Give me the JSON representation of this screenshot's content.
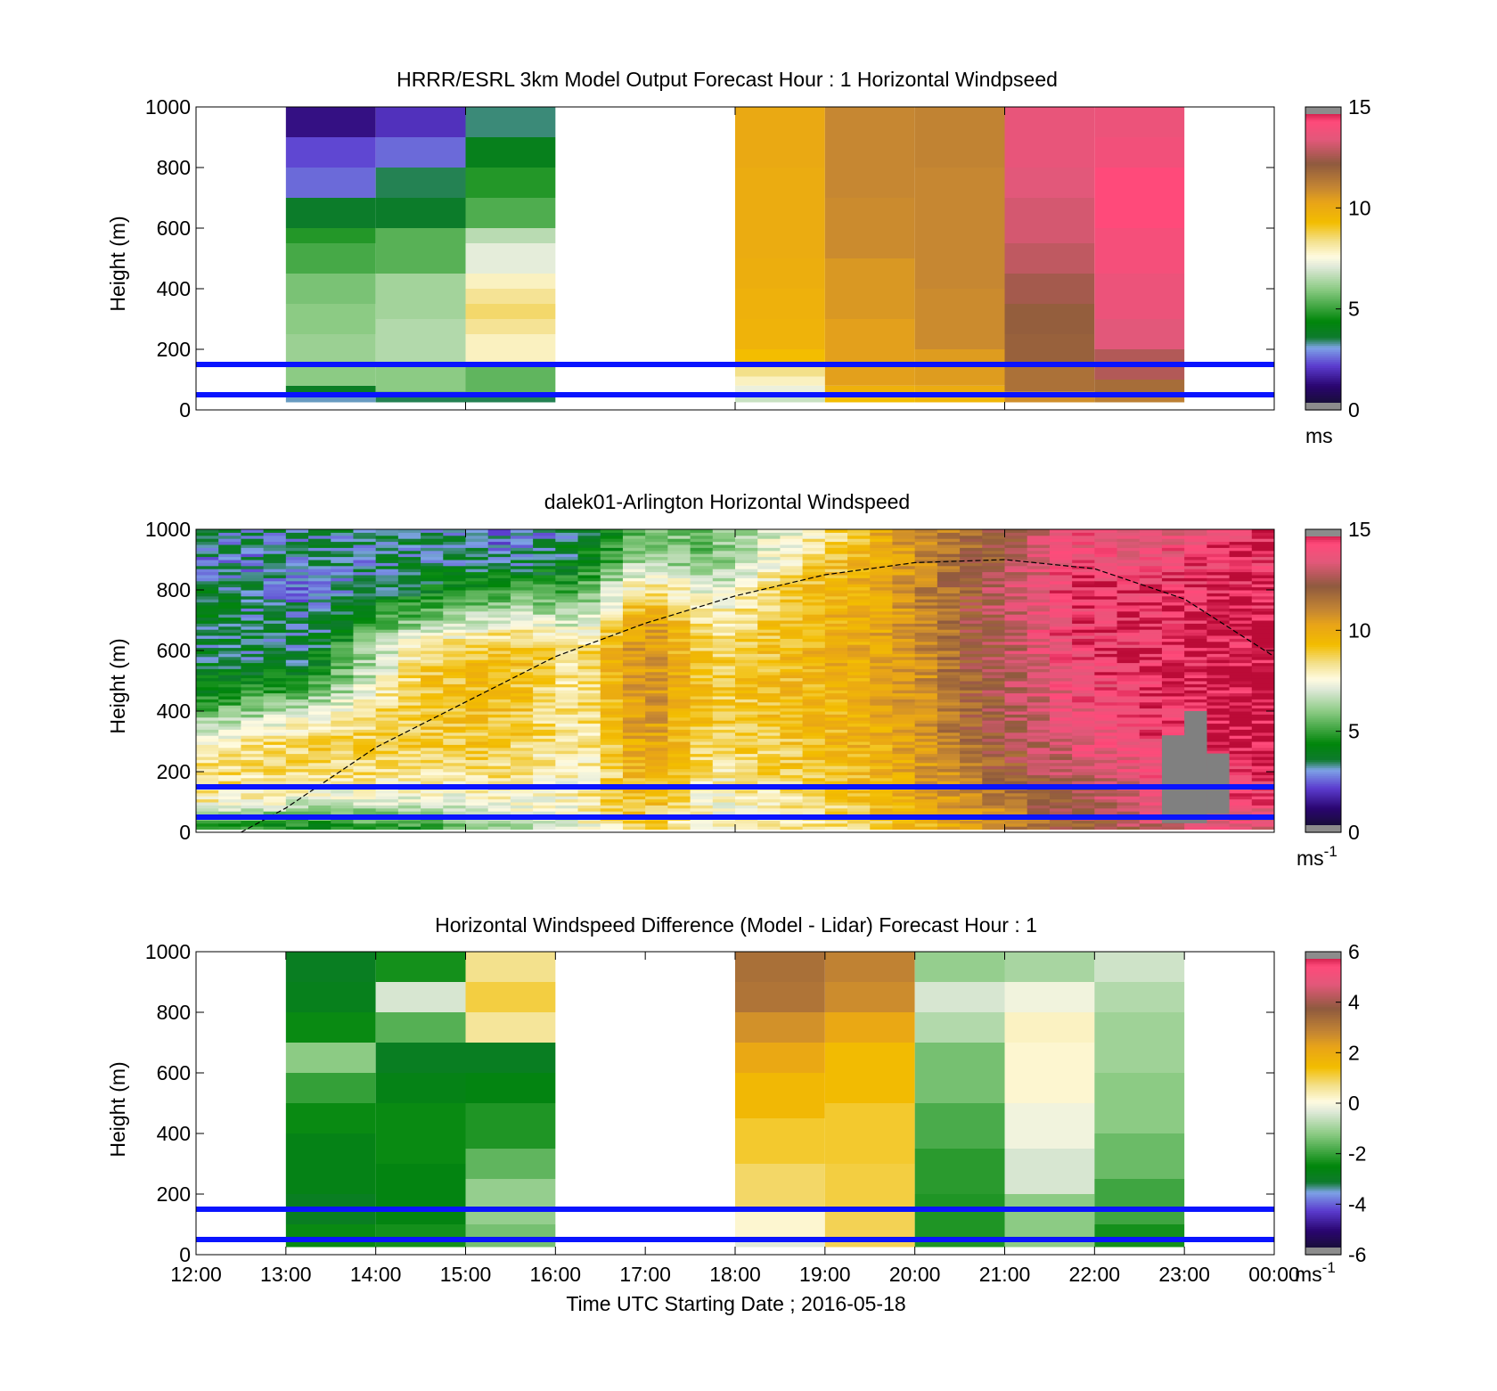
{
  "chart_data": [
    {
      "type": "heatmap",
      "title": "HRRR/ESRL 3km Model Output   Forecast Hour : 1 Horizontal Windpseed",
      "xlabel": "",
      "ylabel": "Height (m)",
      "xlim": [
        0,
        12
      ],
      "ylim": [
        0,
        1000
      ],
      "yticks": [
        0,
        200,
        400,
        600,
        800,
        1000
      ],
      "xticks": [
        0,
        3,
        6,
        9
      ],
      "show_xtick_labels": false,
      "colorbar": {
        "ticks": [
          "0",
          "5",
          "10",
          "15"
        ],
        "vmin": 0,
        "vmax": 15,
        "unit": "ms",
        "unit_sup": ""
      },
      "hlines": [
        150,
        50
      ],
      "column_width_hours": 1,
      "columns": [
        {
          "t": 1,
          "bands": [
            [
              25,
              45,
              3.2
            ],
            [
              45,
              80,
              3.8
            ],
            [
              80,
              150,
              6.0
            ],
            [
              150,
              250,
              6.2
            ],
            [
              250,
              350,
              6.0
            ],
            [
              350,
              450,
              5.8
            ],
            [
              450,
              550,
              5.2
            ],
            [
              550,
              600,
              4.8
            ],
            [
              600,
              700,
              3.7
            ],
            [
              700,
              800,
              2.6
            ],
            [
              800,
              900,
              2.3
            ],
            [
              900,
              1000,
              1.4
            ]
          ]
        },
        {
          "t": 2,
          "bands": [
            [
              25,
              60,
              3.5
            ],
            [
              60,
              150,
              6.0
            ],
            [
              150,
              300,
              6.5
            ],
            [
              300,
              450,
              6.3
            ],
            [
              450,
              600,
              5.4
            ],
            [
              600,
              700,
              3.7
            ],
            [
              700,
              800,
              3.5
            ],
            [
              800,
              900,
              2.6
            ],
            [
              900,
              1000,
              2.0
            ]
          ]
        },
        {
          "t": 3,
          "bands": [
            [
              25,
              50,
              3.5
            ],
            [
              50,
              150,
              5.5
            ],
            [
              150,
              250,
              7.9
            ],
            [
              250,
              300,
              8.3
            ],
            [
              300,
              350,
              8.6
            ],
            [
              350,
              400,
              8.3
            ],
            [
              400,
              450,
              7.9
            ],
            [
              450,
              550,
              7.2
            ],
            [
              550,
              600,
              6.6
            ],
            [
              600,
              700,
              5.3
            ],
            [
              700,
              800,
              4.8
            ],
            [
              800,
              900,
              4.0
            ],
            [
              900,
              1000,
              3.4
            ]
          ]
        },
        {
          "t": 6,
          "bands": [
            [
              25,
              50,
              6.8
            ],
            [
              50,
              80,
              7.3
            ],
            [
              80,
              110,
              7.9
            ],
            [
              110,
              150,
              8.4
            ],
            [
              150,
              200,
              9.3
            ],
            [
              200,
              300,
              9.7
            ],
            [
              300,
              400,
              9.8
            ],
            [
              400,
              500,
              9.9
            ],
            [
              500,
              600,
              10.0
            ],
            [
              600,
              800,
              10.0
            ],
            [
              800,
              1000,
              10.1
            ]
          ]
        },
        {
          "t": 7,
          "bands": [
            [
              25,
              40,
              9.3
            ],
            [
              40,
              80,
              9.8
            ],
            [
              80,
              150,
              10.4
            ],
            [
              150,
              300,
              10.4
            ],
            [
              300,
              500,
              10.6
            ],
            [
              500,
              700,
              10.9
            ],
            [
              700,
              900,
              11.0
            ],
            [
              900,
              1000,
              11.0
            ]
          ]
        },
        {
          "t": 8,
          "bands": [
            [
              25,
              40,
              9.6
            ],
            [
              40,
              80,
              10.0
            ],
            [
              80,
              200,
              10.5
            ],
            [
              200,
              400,
              10.9
            ],
            [
              400,
              600,
              11.0
            ],
            [
              600,
              800,
              11.0
            ],
            [
              800,
              1000,
              11.1
            ]
          ]
        },
        {
          "t": 9,
          "bands": [
            [
              25,
              60,
              10.8
            ],
            [
              60,
              150,
              11.6
            ],
            [
              150,
              250,
              12.0
            ],
            [
              250,
              350,
              12.1
            ],
            [
              350,
              450,
              12.5
            ],
            [
              450,
              550,
              12.9
            ],
            [
              550,
              700,
              13.2
            ],
            [
              700,
              800,
              13.4
            ],
            [
              800,
              1000,
              13.6
            ]
          ]
        },
        {
          "t": 10,
          "bands": [
            [
              25,
              50,
              11.2
            ],
            [
              50,
              100,
              11.7
            ],
            [
              100,
              200,
              12.7
            ],
            [
              200,
              300,
              13.4
            ],
            [
              300,
              450,
              13.7
            ],
            [
              450,
              600,
              14.0
            ],
            [
              600,
              800,
              14.3
            ],
            [
              800,
              900,
              13.9
            ],
            [
              900,
              1000,
              13.7
            ]
          ]
        }
      ]
    },
    {
      "type": "heatmap",
      "title": "dalek01-Arlington  Horizontal Windspeed",
      "xlabel": "",
      "ylabel": "Height (m)",
      "xlim": [
        0,
        12
      ],
      "ylim": [
        0,
        1000
      ],
      "yticks": [
        0,
        200,
        400,
        600,
        800,
        1000
      ],
      "xticks": [
        0,
        3,
        6,
        9
      ],
      "show_xtick_labels": false,
      "colorbar": {
        "ticks": [
          "0",
          "5",
          "10",
          "15"
        ],
        "vmin": 0,
        "vmax": 15,
        "unit": "ms",
        "unit_sup": "-1"
      },
      "hlines": [
        150,
        50
      ],
      "column_width_hours": 0.25,
      "profile_hours": [
        0.25,
        1.25,
        2.5,
        3.5,
        4.25,
        5.0,
        5.75,
        6.75,
        7.75,
        8.75,
        9.75,
        10.75,
        11.75
      ],
      "profile_speeds": [
        [
          4.0,
          8.0,
          8.5,
          8.0,
          5.5,
          4.0,
          3.5,
          3.8,
          3.5,
          3.0,
          3.5
        ],
        [
          4.0,
          7.0,
          8.5,
          8.8,
          7.0,
          4.5,
          3.5,
          3.2,
          2.8,
          3.0,
          3.5
        ],
        [
          4.5,
          7.0,
          8.5,
          9.0,
          9.2,
          9.0,
          8.5,
          6.0,
          4.0,
          3.5,
          3.5
        ],
        [
          6.0,
          7.5,
          8.5,
          9.0,
          9.3,
          9.5,
          9.5,
          7.5,
          5.0,
          3.2,
          2.5
        ],
        [
          7.0,
          8.0,
          7.5,
          7.8,
          8.0,
          8.0,
          8.2,
          6.5,
          5.0,
          4.0,
          3.5
        ],
        [
          9.0,
          9.6,
          10.0,
          10.5,
          10.9,
          11.0,
          10.8,
          10.5,
          8.8,
          6.5,
          5.5
        ],
        [
          7.5,
          7.5,
          8.0,
          8.5,
          8.8,
          9.0,
          8.5,
          8.0,
          7.0,
          5.5,
          6.0
        ],
        [
          8.0,
          8.5,
          9.0,
          9.2,
          9.5,
          9.5,
          9.6,
          9.5,
          9.3,
          8.5,
          7.5
        ],
        [
          9.0,
          9.5,
          9.8,
          10.0,
          10.0,
          10.1,
          10.2,
          10.3,
          10.3,
          10.2,
          10.3
        ],
        [
          10.5,
          11.0,
          11.6,
          12.0,
          12.2,
          12.3,
          12.4,
          12.5,
          12.5,
          12.0,
          11.8
        ],
        [
          12.0,
          12.5,
          13.0,
          13.5,
          13.7,
          13.9,
          14.1,
          14.3,
          14.4,
          14.0,
          13.8
        ],
        [
          13.0,
          13.5,
          14.0,
          14.3,
          14.5,
          14.6,
          14.6,
          14.5,
          14.4,
          14.0,
          13.5
        ],
        [
          13.5,
          14.0,
          14.5,
          14.8,
          15.0,
          15.0,
          14.9,
          14.8,
          14.6,
          14.4,
          14.5
        ]
      ],
      "missing_blocks": [
        {
          "t0": 10.75,
          "t1": 11.25,
          "h0": 30,
          "h1": 320
        },
        {
          "t0": 11.0,
          "t1": 11.25,
          "h0": 30,
          "h1": 400
        },
        {
          "t0": 11.25,
          "t1": 11.5,
          "h0": 60,
          "h1": 260
        }
      ],
      "boundary_layer_curve": {
        "x": [
          0.5,
          1,
          2,
          3,
          4,
          5,
          6,
          7,
          8,
          9,
          10,
          11,
          12
        ],
        "y": [
          0,
          80,
          280,
          430,
          580,
          690,
          780,
          850,
          890,
          900,
          870,
          770,
          580
        ]
      }
    },
    {
      "type": "heatmap",
      "title": "Horizontal Windspeed Difference (Model - Lidar) Forecast Hour : 1",
      "xlabel": "Time UTC  Starting Date ; 2016-05-18",
      "ylabel": "Height (m)",
      "xlim": [
        0,
        12
      ],
      "ylim": [
        0,
        1000
      ],
      "yticks": [
        0,
        200,
        400,
        600,
        800,
        1000
      ],
      "xticks": [
        0,
        1,
        2,
        3,
        4,
        5,
        6,
        7,
        8,
        9,
        10,
        11,
        12
      ],
      "xtick_labels": [
        "12:00",
        "13:00",
        "14:00",
        "15:00",
        "16:00",
        "17:00",
        "18:00",
        "19:00",
        "20:00",
        "21:00",
        "22:00",
        "23:00",
        "00:00"
      ],
      "show_xtick_labels": true,
      "colorbar": {
        "ticks": [
          "-6",
          "-4",
          "-2",
          "0",
          "2",
          "4",
          "6"
        ],
        "vmin": -6,
        "vmax": 6,
        "unit": "ms",
        "unit_sup": "-1"
      },
      "hlines": [
        150,
        50
      ],
      "column_width_hours": 1,
      "columns": [
        {
          "t": 1,
          "bands": [
            [
              25,
              100,
              -2.4
            ],
            [
              100,
              200,
              -2.9
            ],
            [
              200,
              400,
              -2.7
            ],
            [
              400,
              500,
              -2.4
            ],
            [
              500,
              600,
              -2.0
            ],
            [
              600,
              700,
              -1.2
            ],
            [
              700,
              800,
              -2.4
            ],
            [
              800,
              900,
              -2.8
            ],
            [
              900,
              1000,
              -2.9
            ]
          ]
        },
        {
          "t": 2,
          "bands": [
            [
              25,
              100,
              -2.3
            ],
            [
              100,
              300,
              -2.6
            ],
            [
              300,
              500,
              -2.4
            ],
            [
              500,
              600,
              -2.7
            ],
            [
              600,
              700,
              -2.9
            ],
            [
              700,
              800,
              -1.7
            ],
            [
              800,
              900,
              -0.4
            ],
            [
              900,
              1000,
              -2.3
            ]
          ]
        },
        {
          "t": 3,
          "bands": [
            [
              25,
              100,
              -1.4
            ],
            [
              100,
              250,
              -1.1
            ],
            [
              250,
              350,
              -1.6
            ],
            [
              350,
              500,
              -2.2
            ],
            [
              500,
              600,
              -2.6
            ],
            [
              600,
              700,
              -2.9
            ],
            [
              700,
              800,
              0.6
            ],
            [
              800,
              900,
              1.1
            ],
            [
              900,
              1000,
              0.7
            ]
          ]
        },
        {
          "t": 6,
          "bands": [
            [
              25,
              50,
              -0.3
            ],
            [
              50,
              150,
              0.2
            ],
            [
              150,
              300,
              0.9
            ],
            [
              300,
              450,
              1.2
            ],
            [
              450,
              600,
              1.6
            ],
            [
              600,
              700,
              2.1
            ],
            [
              700,
              800,
              2.6
            ],
            [
              800,
              900,
              3.2
            ],
            [
              900,
              1000,
              3.3
            ]
          ]
        },
        {
          "t": 7,
          "bands": [
            [
              25,
              150,
              1.0
            ],
            [
              150,
              300,
              1.1
            ],
            [
              300,
              500,
              1.2
            ],
            [
              500,
              700,
              1.5
            ],
            [
              700,
              800,
              2.1
            ],
            [
              800,
              900,
              2.7
            ],
            [
              900,
              1000,
              2.9
            ]
          ]
        },
        {
          "t": 8,
          "bands": [
            [
              25,
              200,
              -2.2
            ],
            [
              200,
              350,
              -2.1
            ],
            [
              350,
              500,
              -1.8
            ],
            [
              500,
              700,
              -1.4
            ],
            [
              700,
              800,
              -0.8
            ],
            [
              800,
              900,
              -0.4
            ],
            [
              900,
              1000,
              -1.1
            ]
          ]
        },
        {
          "t": 9,
          "bands": [
            [
              25,
              200,
              -1.2
            ],
            [
              200,
              350,
              -0.4
            ],
            [
              350,
              500,
              -0.1
            ],
            [
              500,
              700,
              0.2
            ],
            [
              700,
              800,
              0.3
            ],
            [
              800,
              900,
              -0.1
            ],
            [
              900,
              1000,
              -0.9
            ]
          ]
        },
        {
          "t": 10,
          "bands": [
            [
              25,
              100,
              -2.3
            ],
            [
              100,
              250,
              -1.9
            ],
            [
              250,
              400,
              -1.5
            ],
            [
              400,
              600,
              -1.2
            ],
            [
              600,
              800,
              -1.0
            ],
            [
              800,
              900,
              -0.8
            ],
            [
              900,
              1000,
              -0.5
            ]
          ]
        }
      ]
    }
  ]
}
